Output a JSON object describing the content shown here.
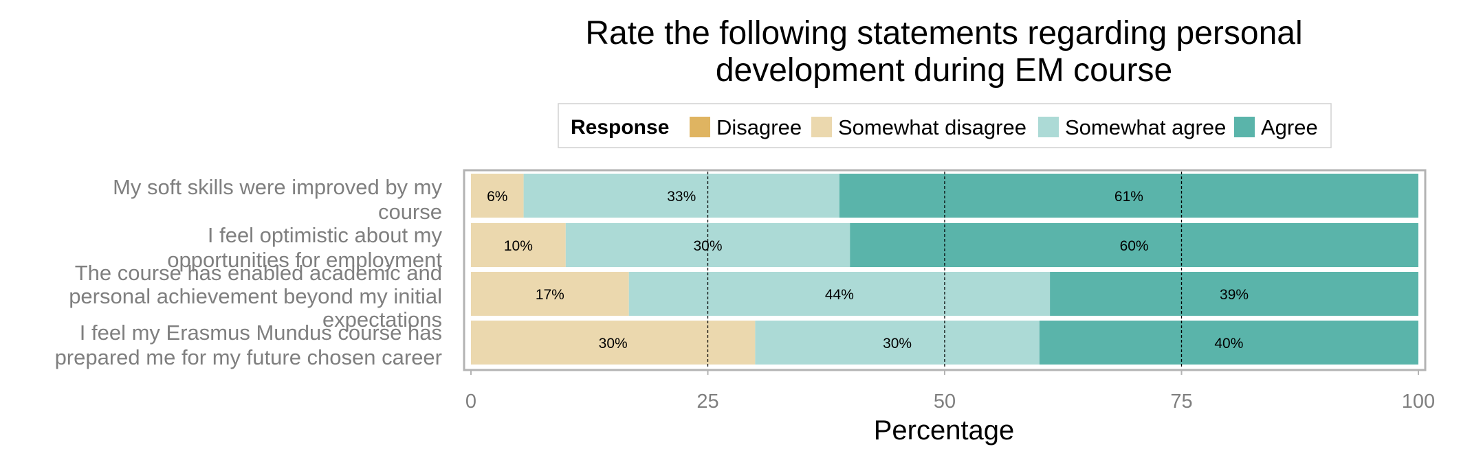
{
  "chart_data": {
    "type": "bar",
    "orientation": "horizontal",
    "stacked": true,
    "title": "Rate the following statements regarding personal development during EM course",
    "title_lines": [
      "Rate the following statements regarding personal",
      "development during EM course"
    ],
    "xlabel": "Percentage",
    "ylabel": "",
    "xlim": [
      0,
      100
    ],
    "xticks": [
      0,
      25,
      50,
      75,
      100
    ],
    "reference_lines": [
      25,
      50,
      75
    ],
    "legend": {
      "title": "Response",
      "placement": "top",
      "entries": [
        "Disagree",
        "Somewhat disagree",
        "Somewhat agree",
        "Agree"
      ]
    },
    "categories": [
      "My soft skills were improved by my course",
      "I feel optimistic about my opportunities for employment",
      "The course has enabled academic and personal achievement beyond my initial expectations",
      "I feel my Erasmus Mundus course has prepared me for my future chosen career"
    ],
    "category_lines": [
      [
        "My soft skills were improved by my",
        "course"
      ],
      [
        "I feel optimistic about my",
        "opportunities for employment"
      ],
      [
        "The course has enabled academic and",
        "personal achievement beyond my initial",
        "expectations"
      ],
      [
        "I feel my Erasmus Mundus course has",
        "prepared me for my future chosen career"
      ]
    ],
    "series": [
      {
        "name": "Disagree",
        "color": "#dfb461",
        "values": [
          0,
          0,
          0,
          0
        ],
        "labels": [
          "",
          "",
          "",
          ""
        ]
      },
      {
        "name": "Somewhat disagree",
        "color": "#ebd8ae",
        "values": [
          5.56,
          10,
          16.67,
          30
        ],
        "labels": [
          "6%",
          "10%",
          "17%",
          "30%"
        ]
      },
      {
        "name": "Somewhat agree",
        "color": "#acdad6",
        "values": [
          33.33,
          30,
          44.44,
          30
        ],
        "labels": [
          "33%",
          "30%",
          "44%",
          "30%"
        ]
      },
      {
        "name": "Agree",
        "color": "#5ab4aa",
        "values": [
          61.11,
          60,
          38.89,
          40
        ],
        "labels": [
          "61%",
          "60%",
          "39%",
          "40%"
        ]
      }
    ],
    "grid": false
  }
}
